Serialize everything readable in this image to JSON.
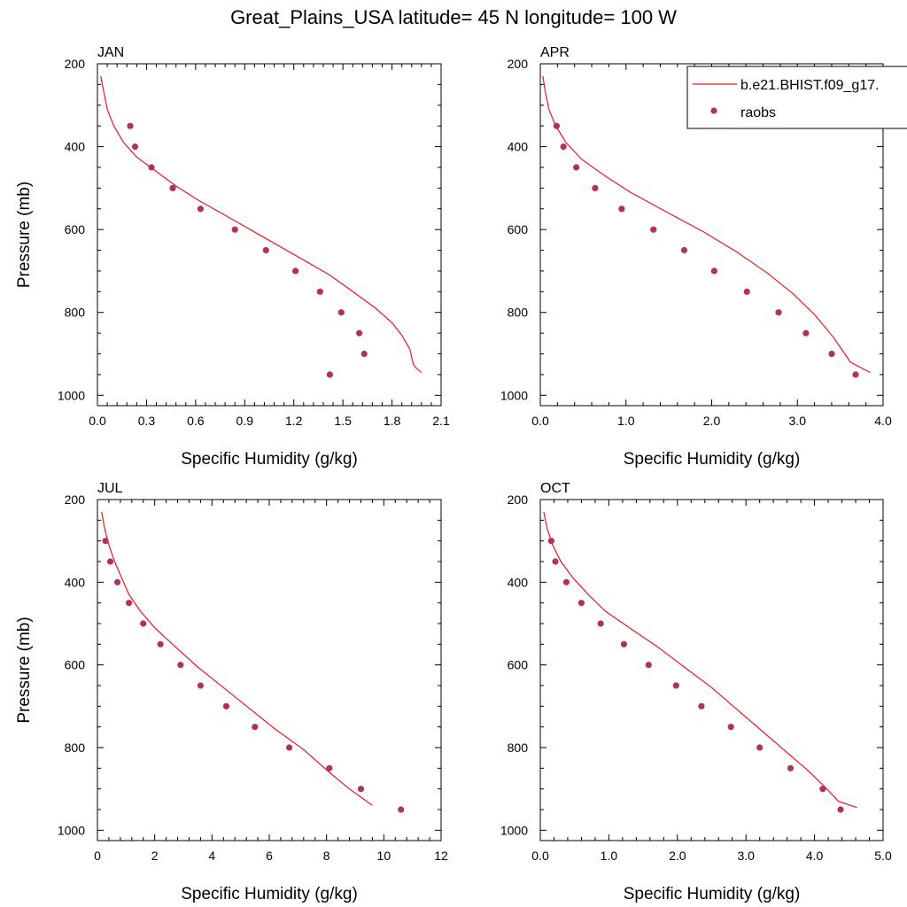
{
  "figure": {
    "title": "Great_Plains_USA  latitude= 45 N longitude= 100 W",
    "legend": {
      "position": "top-right",
      "entries": [
        {
          "label": "b.e21.BHIST.f09_g17.",
          "marker": "line",
          "color": "#e8181c"
        },
        {
          "label": "raobs",
          "marker": "dot",
          "color": "#b0315c"
        }
      ]
    },
    "colors": {
      "model": "#e8181c",
      "obs": "#b0315c"
    }
  },
  "chart_data": [
    {
      "type": "line",
      "title": "JAN",
      "xlabel": "Specific Humidity (g/kg)",
      "ylabel": "Pressure (mb)",
      "xlim": [
        0,
        2.1
      ],
      "ylim": [
        1025,
        200
      ],
      "xticks": [
        "0.0",
        "0.3",
        "0.6",
        "0.9",
        "1.2",
        "1.5",
        "1.8",
        "2.1"
      ],
      "xtick_values": [
        0,
        0.3,
        0.6,
        0.9,
        1.2,
        1.5,
        1.8,
        2.1
      ],
      "yticks": [
        "200",
        "400",
        "600",
        "800",
        "1000"
      ],
      "ytick_values": [
        200,
        400,
        600,
        800,
        1000
      ],
      "series": [
        {
          "name": "b.e21.BHIST.f09_g17.",
          "kind": "line",
          "x": [
            0.02,
            0.04,
            0.06,
            0.1,
            0.16,
            0.24,
            0.36,
            0.48,
            0.62,
            0.8,
            1.0,
            1.2,
            1.42,
            1.58,
            1.7,
            1.8,
            1.86,
            1.91,
            1.93,
            1.95,
            1.98
          ],
          "y": [
            230,
            270,
            310,
            350,
            390,
            425,
            460,
            495,
            530,
            570,
            615,
            660,
            710,
            755,
            790,
            825,
            855,
            890,
            925,
            935,
            945
          ]
        },
        {
          "name": "raobs",
          "kind": "scatter",
          "x": [
            0.2,
            0.23,
            0.33,
            0.46,
            0.63,
            0.84,
            1.03,
            1.21,
            1.36,
            1.49,
            1.6,
            1.63,
            1.42
          ],
          "y": [
            350,
            400,
            450,
            500,
            550,
            600,
            650,
            700,
            750,
            800,
            850,
            900,
            950
          ]
        }
      ]
    },
    {
      "type": "line",
      "title": "APR",
      "xlabel": "Specific Humidity (g/kg)",
      "ylabel": "",
      "xlim": [
        0,
        4.0
      ],
      "ylim": [
        1025,
        200
      ],
      "xticks": [
        "0.0",
        "1.0",
        "2.0",
        "3.0",
        "4.0"
      ],
      "xtick_values": [
        0,
        1,
        2,
        3,
        4
      ],
      "yticks": [
        "200",
        "400",
        "600",
        "800",
        "1000"
      ],
      "ytick_values": [
        200,
        400,
        600,
        800,
        1000
      ],
      "series": [
        {
          "name": "b.e21.BHIST.f09_g17.",
          "kind": "line",
          "x": [
            0.03,
            0.06,
            0.1,
            0.18,
            0.3,
            0.48,
            0.75,
            1.05,
            1.45,
            1.9,
            2.3,
            2.65,
            2.95,
            3.2,
            3.42,
            3.62,
            3.85
          ],
          "y": [
            230,
            270,
            310,
            350,
            390,
            430,
            470,
            510,
            555,
            605,
            655,
            705,
            755,
            805,
            860,
            920,
            945
          ]
        },
        {
          "name": "raobs",
          "kind": "scatter",
          "x": [
            0.19,
            0.27,
            0.42,
            0.64,
            0.95,
            1.32,
            1.68,
            2.03,
            2.41,
            2.78,
            3.1,
            3.4,
            3.68
          ],
          "y": [
            350,
            400,
            450,
            500,
            550,
            600,
            650,
            700,
            750,
            800,
            850,
            900,
            950
          ]
        }
      ]
    },
    {
      "type": "line",
      "title": "JUL",
      "xlabel": "Specific Humidity (g/kg)",
      "ylabel": "Pressure (mb)",
      "xlim": [
        0,
        12
      ],
      "ylim": [
        1025,
        200
      ],
      "xticks": [
        "0",
        "2",
        "4",
        "6",
        "8",
        "10",
        "12"
      ],
      "xtick_values": [
        0,
        2,
        4,
        6,
        8,
        10,
        12
      ],
      "yticks": [
        "200",
        "400",
        "600",
        "800",
        "1000"
      ],
      "ytick_values": [
        200,
        400,
        600,
        800,
        1000
      ],
      "series": [
        {
          "name": "b.e21.BHIST.f09_g17.",
          "kind": "line",
          "x": [
            0.15,
            0.25,
            0.4,
            0.6,
            0.85,
            1.1,
            1.5,
            2.0,
            2.7,
            3.5,
            4.4,
            5.3,
            6.2,
            7.2,
            8.1,
            8.8,
            9.3,
            9.6
          ],
          "y": [
            230,
            270,
            310,
            350,
            390,
            430,
            470,
            510,
            555,
            605,
            655,
            705,
            755,
            805,
            860,
            900,
            925,
            940
          ]
        },
        {
          "name": "raobs",
          "kind": "scatter",
          "x": [
            0.28,
            0.45,
            0.7,
            1.1,
            1.6,
            2.2,
            2.9,
            3.6,
            4.5,
            5.5,
            6.7,
            8.1,
            9.2,
            10.6
          ],
          "y": [
            300,
            350,
            400,
            450,
            500,
            550,
            600,
            650,
            700,
            750,
            800,
            850,
            900,
            950
          ]
        }
      ]
    },
    {
      "type": "line",
      "title": "OCT",
      "xlabel": "Specific Humidity (g/kg)",
      "ylabel": "",
      "xlim": [
        0,
        5.0
      ],
      "ylim": [
        1025,
        200
      ],
      "xticks": [
        "0.0",
        "1.0",
        "2.0",
        "3.0",
        "4.0",
        "5.0"
      ],
      "xtick_values": [
        0,
        1,
        2,
        3,
        4,
        5
      ],
      "yticks": [
        "200",
        "400",
        "600",
        "800",
        "1000"
      ],
      "ytick_values": [
        200,
        400,
        600,
        800,
        1000
      ],
      "series": [
        {
          "name": "b.e21.BHIST.f09_g17.",
          "kind": "line",
          "x": [
            0.05,
            0.1,
            0.18,
            0.3,
            0.48,
            0.7,
            0.95,
            1.3,
            1.7,
            2.1,
            2.5,
            2.85,
            3.2,
            3.55,
            3.9,
            4.15,
            4.35,
            4.62
          ],
          "y": [
            230,
            270,
            310,
            350,
            390,
            430,
            470,
            510,
            555,
            605,
            655,
            705,
            755,
            805,
            855,
            895,
            930,
            945
          ]
        },
        {
          "name": "raobs",
          "kind": "scatter",
          "x": [
            0.16,
            0.22,
            0.38,
            0.6,
            0.88,
            1.22,
            1.58,
            1.98,
            2.35,
            2.78,
            3.2,
            3.65,
            4.12,
            4.38
          ],
          "y": [
            300,
            350,
            400,
            450,
            500,
            550,
            600,
            650,
            700,
            750,
            800,
            850,
            900,
            950
          ]
        }
      ]
    }
  ]
}
